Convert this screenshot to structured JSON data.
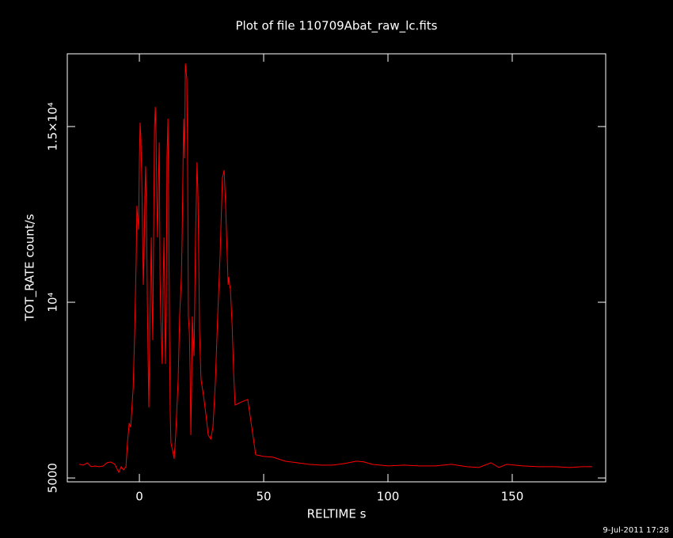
{
  "chart_data": {
    "type": "line",
    "title": "Plot of file 110709Abat_raw_lc.fits",
    "x_label": "RELTIME  s",
    "y_label": "TOT_RATE  count/s",
    "footer": "9-Jul-2011 17:28",
    "color": "#ff0000",
    "xlim": [
      -29,
      187.6
    ],
    "ylim": [
      4890,
      17070
    ],
    "xticks": [
      0,
      50,
      100,
      150
    ],
    "yticks": [
      5000,
      {
        "value": 10000,
        "label": "10⁴"
      },
      {
        "value": 15000,
        "label": "1.5×10⁴"
      }
    ],
    "x": [
      -24.2,
      -22.6,
      -21.0,
      -19.4,
      -17.8,
      -16.2,
      -14.6,
      -13.1,
      -11.5,
      -9.9,
      -8.3,
      -7.3,
      -6.4,
      -5.4,
      -4.8,
      -4.1,
      -3.5,
      -2.5,
      -1.9,
      -1.3,
      -1.0,
      -0.3,
      0,
      0.3,
      0.6,
      1.0,
      1.3,
      1.6,
      1.9,
      2.2,
      2.5,
      2.9,
      3.2,
      3.5,
      3.8,
      4.1,
      4.5,
      4.8,
      5.1,
      5.4,
      5.7,
      6.1,
      6.4,
      6.7,
      7.0,
      7.3,
      7.6,
      8.0,
      8.3,
      8.6,
      8.9,
      9.2,
      9.6,
      9.9,
      10.2,
      10.5,
      10.8,
      11.1,
      11.5,
      11.8,
      12.1,
      12.4,
      12.7,
      13.4,
      14.0,
      14.6,
      15.6,
      16.2,
      16.9,
      17.2,
      17.8,
      18.2,
      18.5,
      19.1,
      19.4,
      19.7,
      20.1,
      20.4,
      20.7,
      21.0,
      21.3,
      22.0,
      22.6,
      23.2,
      23.6,
      23.9,
      24.2,
      24.8,
      25.8,
      26.8,
      27.7,
      28.7,
      29.6,
      30.6,
      31.5,
      32.5,
      33.4,
      34.1,
      34.7,
      35.4,
      35.7,
      36.0,
      36.3,
      36.6,
      37.3,
      37.9,
      38.5,
      41.1,
      43.6,
      46.8,
      50.0,
      53.8,
      58.6,
      63.4,
      68.2,
      72.9,
      77.7,
      82.5,
      87.3,
      90.4,
      93.6,
      100.0,
      106.4,
      112.7,
      119.1,
      125.5,
      131.8,
      136.6,
      141.4,
      144.6,
      147.8,
      154.1,
      160.5,
      166.9,
      173.2,
      178.0,
      182.2
    ],
    "values": [
      5390,
      5365,
      5430,
      5320,
      5340,
      5320,
      5340,
      5430,
      5455,
      5390,
      5160,
      5320,
      5230,
      5320,
      5995,
      6560,
      6445,
      7570,
      9145,
      11170,
      12745,
      12070,
      14095,
      15110,
      14660,
      13420,
      11845,
      10495,
      11395,
      12970,
      13870,
      12295,
      10045,
      8470,
      7008,
      8695,
      10495,
      11845,
      10045,
      8920,
      11845,
      14995,
      15558,
      14770,
      12970,
      11845,
      13195,
      14545,
      10720,
      9595,
      8920,
      8245,
      10720,
      11845,
      10045,
      8245,
      9595,
      14095,
      15220,
      12745,
      9145,
      6895,
      5995,
      5770,
      5545,
      6220,
      7795,
      9595,
      10720,
      11845,
      15220,
      14095,
      16795,
      16345,
      14095,
      9595,
      9145,
      8020,
      6220,
      7570,
      9595,
      8470,
      11845,
      13983,
      12970,
      11170,
      9145,
      7795,
      7345,
      6783,
      6220,
      6108,
      6445,
      7795,
      9595,
      11395,
      13533,
      13758,
      12745,
      11170,
      10495,
      10720,
      10495,
      10383,
      9370,
      8020,
      7075,
      7165,
      7233,
      5658,
      5613,
      5590,
      5478,
      5433,
      5388,
      5365,
      5365,
      5410,
      5478,
      5455,
      5388,
      5343,
      5365,
      5343,
      5343,
      5388,
      5320,
      5298,
      5433,
      5298,
      5388,
      5343,
      5320,
      5320,
      5298,
      5320,
      5320
    ]
  }
}
